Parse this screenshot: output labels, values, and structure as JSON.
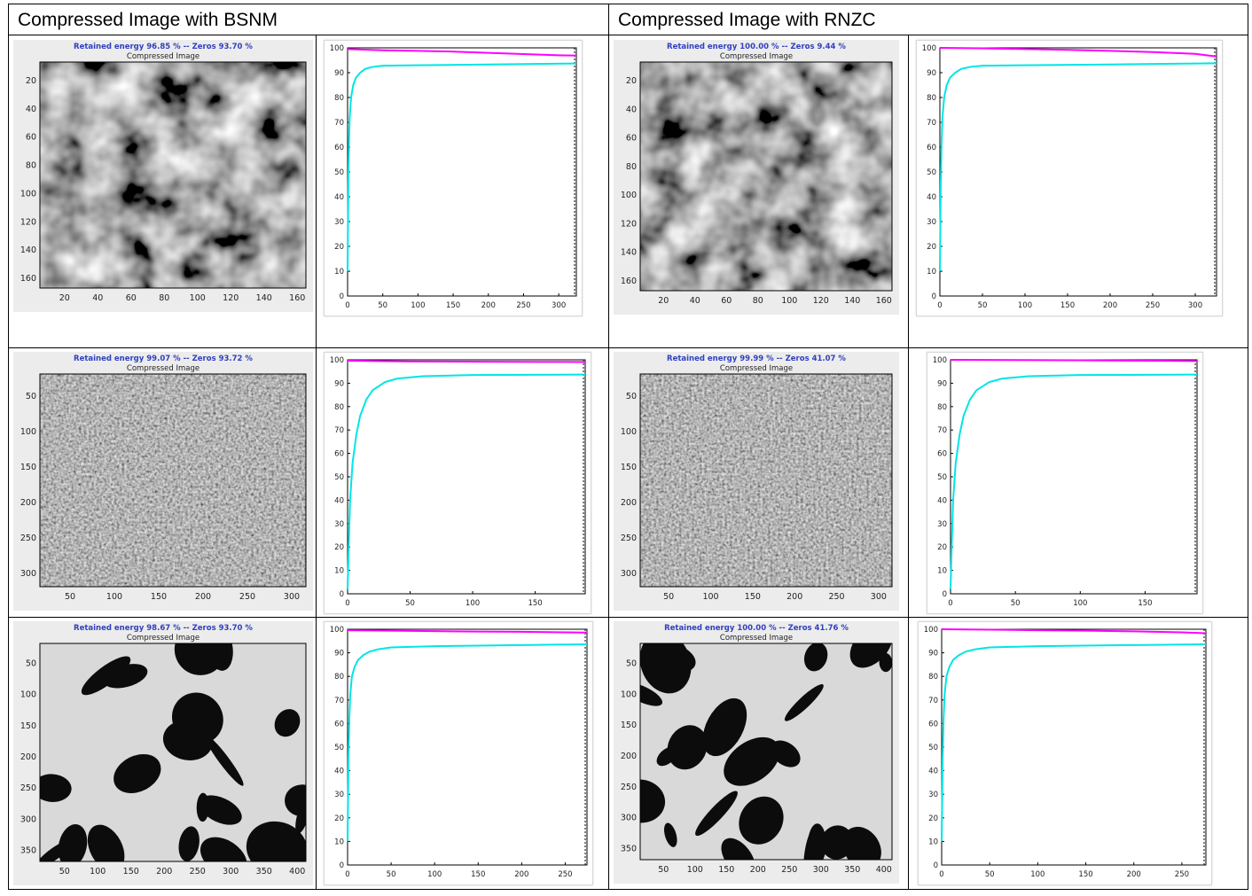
{
  "headers": {
    "bsnm": "Compressed Image with BSNM",
    "rnzc": "Compressed Image with RNZC"
  },
  "panels": [
    {
      "id": "r1-bsnm",
      "title": "Retained energy 96.85 % -- Zeros 93.70 %",
      "subtitle": "Compressed Image",
      "xticks": [
        "20",
        "40",
        "60",
        "80",
        "100",
        "120",
        "140",
        "160"
      ],
      "yticks": [
        "20",
        "40",
        "60",
        "80",
        "100",
        "120",
        "140",
        "160"
      ],
      "texture": "blur"
    },
    {
      "id": "r1-rnzc",
      "title": "Retained energy 100.00 % -- Zeros 9.44 %",
      "subtitle": "Compressed Image",
      "xticks": [
        "20",
        "40",
        "60",
        "80",
        "100",
        "120",
        "140",
        "160"
      ],
      "yticks": [
        "20",
        "40",
        "60",
        "80",
        "100",
        "120",
        "140",
        "160"
      ],
      "texture": "blur"
    },
    {
      "id": "r2-bsnm",
      "title": "Retained energy 99.07 % -- Zeros 93.72 %",
      "subtitle": "Compressed Image",
      "xticks": [
        "50",
        "100",
        "150",
        "200",
        "250",
        "300"
      ],
      "yticks": [
        "50",
        "100",
        "150",
        "200",
        "250",
        "300"
      ],
      "texture": "noise"
    },
    {
      "id": "r2-rnzc",
      "title": "Retained energy 99.99 % -- Zeros 41.07 %",
      "subtitle": "Compressed Image",
      "xticks": [
        "50",
        "100",
        "150",
        "200",
        "250",
        "300"
      ],
      "yticks": [
        "50",
        "100",
        "150",
        "200",
        "250",
        "300"
      ],
      "texture": "noise"
    },
    {
      "id": "r3-bsnm",
      "title": "Retained energy 98.67 % -- Zeros 93.70 %",
      "subtitle": "Compressed Image",
      "xticks": [
        "50",
        "100",
        "150",
        "200",
        "250",
        "300",
        "350",
        "400"
      ],
      "yticks": [
        "50",
        "100",
        "150",
        "200",
        "250",
        "300",
        "350"
      ],
      "texture": "blobs"
    },
    {
      "id": "r3-rnzc",
      "title": "Retained energy 100.00 % -- Zeros 41.76 %",
      "subtitle": "Compressed Image",
      "xticks": [
        "50",
        "100",
        "150",
        "200",
        "250",
        "300",
        "350",
        "400"
      ],
      "yticks": [
        "50",
        "100",
        "150",
        "200",
        "250",
        "300",
        "350"
      ],
      "texture": "blobs"
    }
  ],
  "chart_data": [
    {
      "id": "r1-bsnm-plot",
      "type": "line",
      "xlim": [
        0,
        325
      ],
      "ylim": [
        0,
        100
      ],
      "xticks": [
        0,
        50,
        100,
        150,
        200,
        250,
        300
      ],
      "yticks": [
        0,
        10,
        20,
        30,
        40,
        50,
        60,
        70,
        80,
        90,
        100
      ],
      "series": [
        {
          "color": "#ff00ff",
          "x": [
            0,
            50,
            100,
            150,
            200,
            250,
            300,
            325
          ],
          "y": [
            99.5,
            99.0,
            98.8,
            98.5,
            98.0,
            97.5,
            97.0,
            96.9
          ]
        },
        {
          "color": "#00e5e5",
          "x": [
            0,
            1,
            2,
            3,
            5,
            8,
            12,
            18,
            25,
            35,
            50,
            100,
            200,
            325
          ],
          "y": [
            10,
            45,
            62,
            72,
            80,
            85,
            88,
            90,
            91.5,
            92.3,
            92.8,
            93.0,
            93.3,
            93.7
          ]
        }
      ]
    },
    {
      "id": "r1-rnzc-plot",
      "type": "line",
      "xlim": [
        0,
        325
      ],
      "ylim": [
        0,
        100
      ],
      "xticks": [
        0,
        50,
        100,
        150,
        200,
        250,
        300
      ],
      "yticks": [
        0,
        10,
        20,
        30,
        40,
        50,
        60,
        70,
        80,
        90,
        100
      ],
      "series": [
        {
          "color": "#ff00ff",
          "x": [
            0,
            50,
            100,
            150,
            200,
            250,
            300,
            325
          ],
          "y": [
            100,
            99.8,
            99.5,
            99.2,
            98.8,
            98.3,
            97.6,
            96.5
          ]
        },
        {
          "color": "#00e5e5",
          "x": [
            0,
            1,
            2,
            3,
            5,
            8,
            12,
            18,
            25,
            35,
            50,
            100,
            200,
            325
          ],
          "y": [
            10,
            45,
            62,
            72,
            80,
            85,
            88,
            90,
            91.5,
            92.3,
            92.8,
            93.0,
            93.3,
            93.8
          ]
        }
      ]
    },
    {
      "id": "r2-bsnm-plot",
      "type": "line",
      "xlim": [
        0,
        190
      ],
      "ylim": [
        0,
        100
      ],
      "xticks": [
        0,
        50,
        100,
        150
      ],
      "yticks": [
        0,
        10,
        20,
        30,
        40,
        50,
        60,
        70,
        80,
        90,
        100
      ],
      "series": [
        {
          "color": "#ff00ff",
          "x": [
            0,
            50,
            100,
            150,
            190
          ],
          "y": [
            99.6,
            99.3,
            99.2,
            99.1,
            99.07
          ]
        },
        {
          "color": "#00e5e5",
          "x": [
            0,
            1,
            2,
            4,
            7,
            10,
            15,
            20,
            30,
            40,
            60,
            100,
            190
          ],
          "y": [
            2,
            22,
            40,
            56,
            68,
            76,
            83,
            87,
            90.5,
            92,
            93,
            93.5,
            93.7
          ]
        }
      ]
    },
    {
      "id": "r2-rnzc-plot",
      "type": "line",
      "xlim": [
        0,
        190
      ],
      "ylim": [
        0,
        100
      ],
      "xticks": [
        0,
        50,
        100,
        150
      ],
      "yticks": [
        0,
        10,
        20,
        30,
        40,
        50,
        60,
        70,
        80,
        90,
        100
      ],
      "series": [
        {
          "color": "#ff00ff",
          "x": [
            0,
            50,
            100,
            150,
            190
          ],
          "y": [
            100,
            99.9,
            99.8,
            99.6,
            99.5
          ]
        },
        {
          "color": "#00e5e5",
          "x": [
            0,
            1,
            2,
            4,
            7,
            10,
            15,
            20,
            30,
            40,
            60,
            100,
            190
          ],
          "y": [
            2,
            22,
            40,
            56,
            68,
            76,
            83,
            87,
            90.5,
            92,
            93,
            93.5,
            93.7
          ]
        }
      ]
    },
    {
      "id": "r3-bsnm-plot",
      "type": "line",
      "xlim": [
        0,
        275
      ],
      "ylim": [
        0,
        100
      ],
      "xticks": [
        0,
        50,
        100,
        150,
        200,
        250
      ],
      "yticks": [
        0,
        10,
        20,
        30,
        40,
        50,
        60,
        70,
        80,
        90,
        100
      ],
      "series": [
        {
          "color": "#ff00ff",
          "x": [
            0,
            50,
            100,
            150,
            200,
            250,
            275
          ],
          "y": [
            99.6,
            99.4,
            99.2,
            99.0,
            98.9,
            98.7,
            98.6
          ]
        },
        {
          "color": "#00e5e5",
          "x": [
            0,
            1,
            2,
            3,
            5,
            8,
            12,
            18,
            25,
            35,
            50,
            100,
            200,
            275
          ],
          "y": [
            10,
            45,
            62,
            72,
            80,
            84,
            87,
            89,
            90.5,
            91.5,
            92.3,
            92.8,
            93.3,
            93.6
          ]
        }
      ]
    },
    {
      "id": "r3-rnzc-plot",
      "type": "line",
      "xlim": [
        0,
        275
      ],
      "ylim": [
        0,
        100
      ],
      "xticks": [
        0,
        50,
        100,
        150,
        200,
        250
      ],
      "yticks": [
        0,
        10,
        20,
        30,
        40,
        50,
        60,
        70,
        80,
        90,
        100
      ],
      "series": [
        {
          "color": "#ff00ff",
          "x": [
            0,
            50,
            100,
            150,
            200,
            250,
            275
          ],
          "y": [
            100,
            99.8,
            99.6,
            99.4,
            99.1,
            98.7,
            98.3
          ]
        },
        {
          "color": "#00e5e5",
          "x": [
            0,
            1,
            2,
            3,
            5,
            8,
            12,
            18,
            25,
            35,
            50,
            100,
            200,
            275
          ],
          "y": [
            10,
            45,
            62,
            72,
            80,
            84,
            87,
            89,
            90.5,
            91.5,
            92.3,
            92.8,
            93.3,
            93.6
          ]
        }
      ]
    }
  ]
}
